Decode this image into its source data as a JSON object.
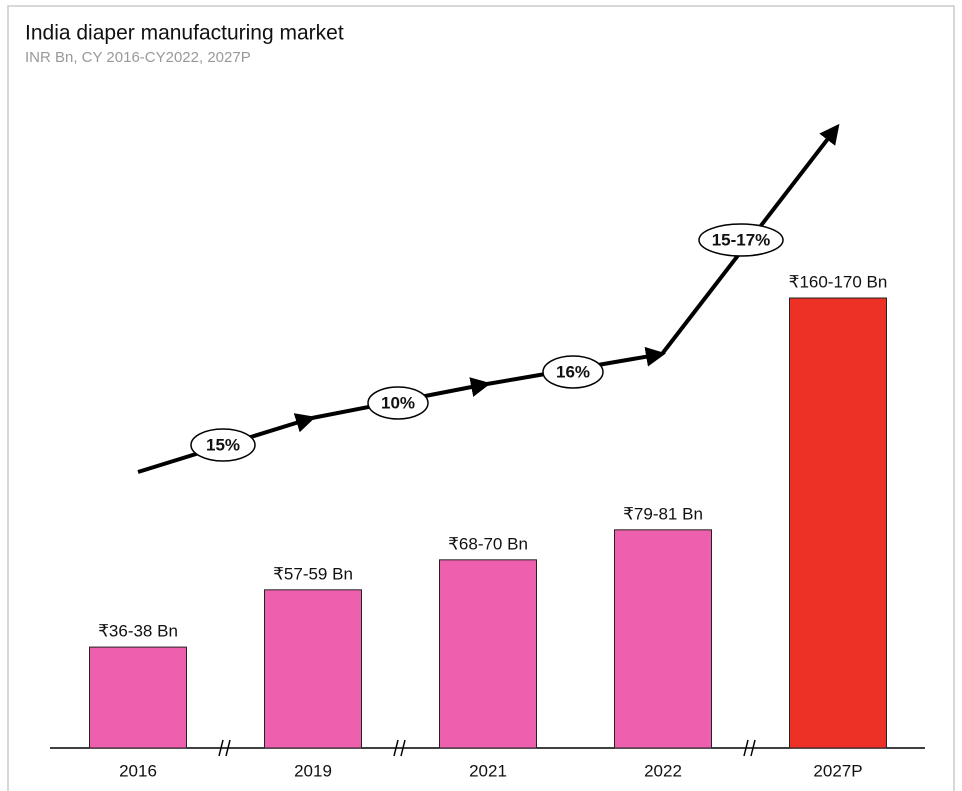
{
  "chart_data": {
    "type": "bar",
    "title": "India diaper manufacturing market",
    "subtitle": "INR Bn, CY 2016-CY2022, 2027P",
    "categories": [
      "2016",
      "2019",
      "2021",
      "2022",
      "2027P"
    ],
    "values": [
      37,
      58,
      69,
      80,
      165
    ],
    "value_labels": [
      "₹36-38 Bn",
      "₹57-59 Bn",
      "₹68-70 Bn",
      "₹79-81 Bn",
      "₹160-170 Bn"
    ],
    "colors": [
      "#ee5fae",
      "#ee5fae",
      "#ee5fae",
      "#ee5fae",
      "#ee3127"
    ],
    "annotations": [
      "15%",
      "10%",
      "16%",
      "15-17%"
    ]
  }
}
